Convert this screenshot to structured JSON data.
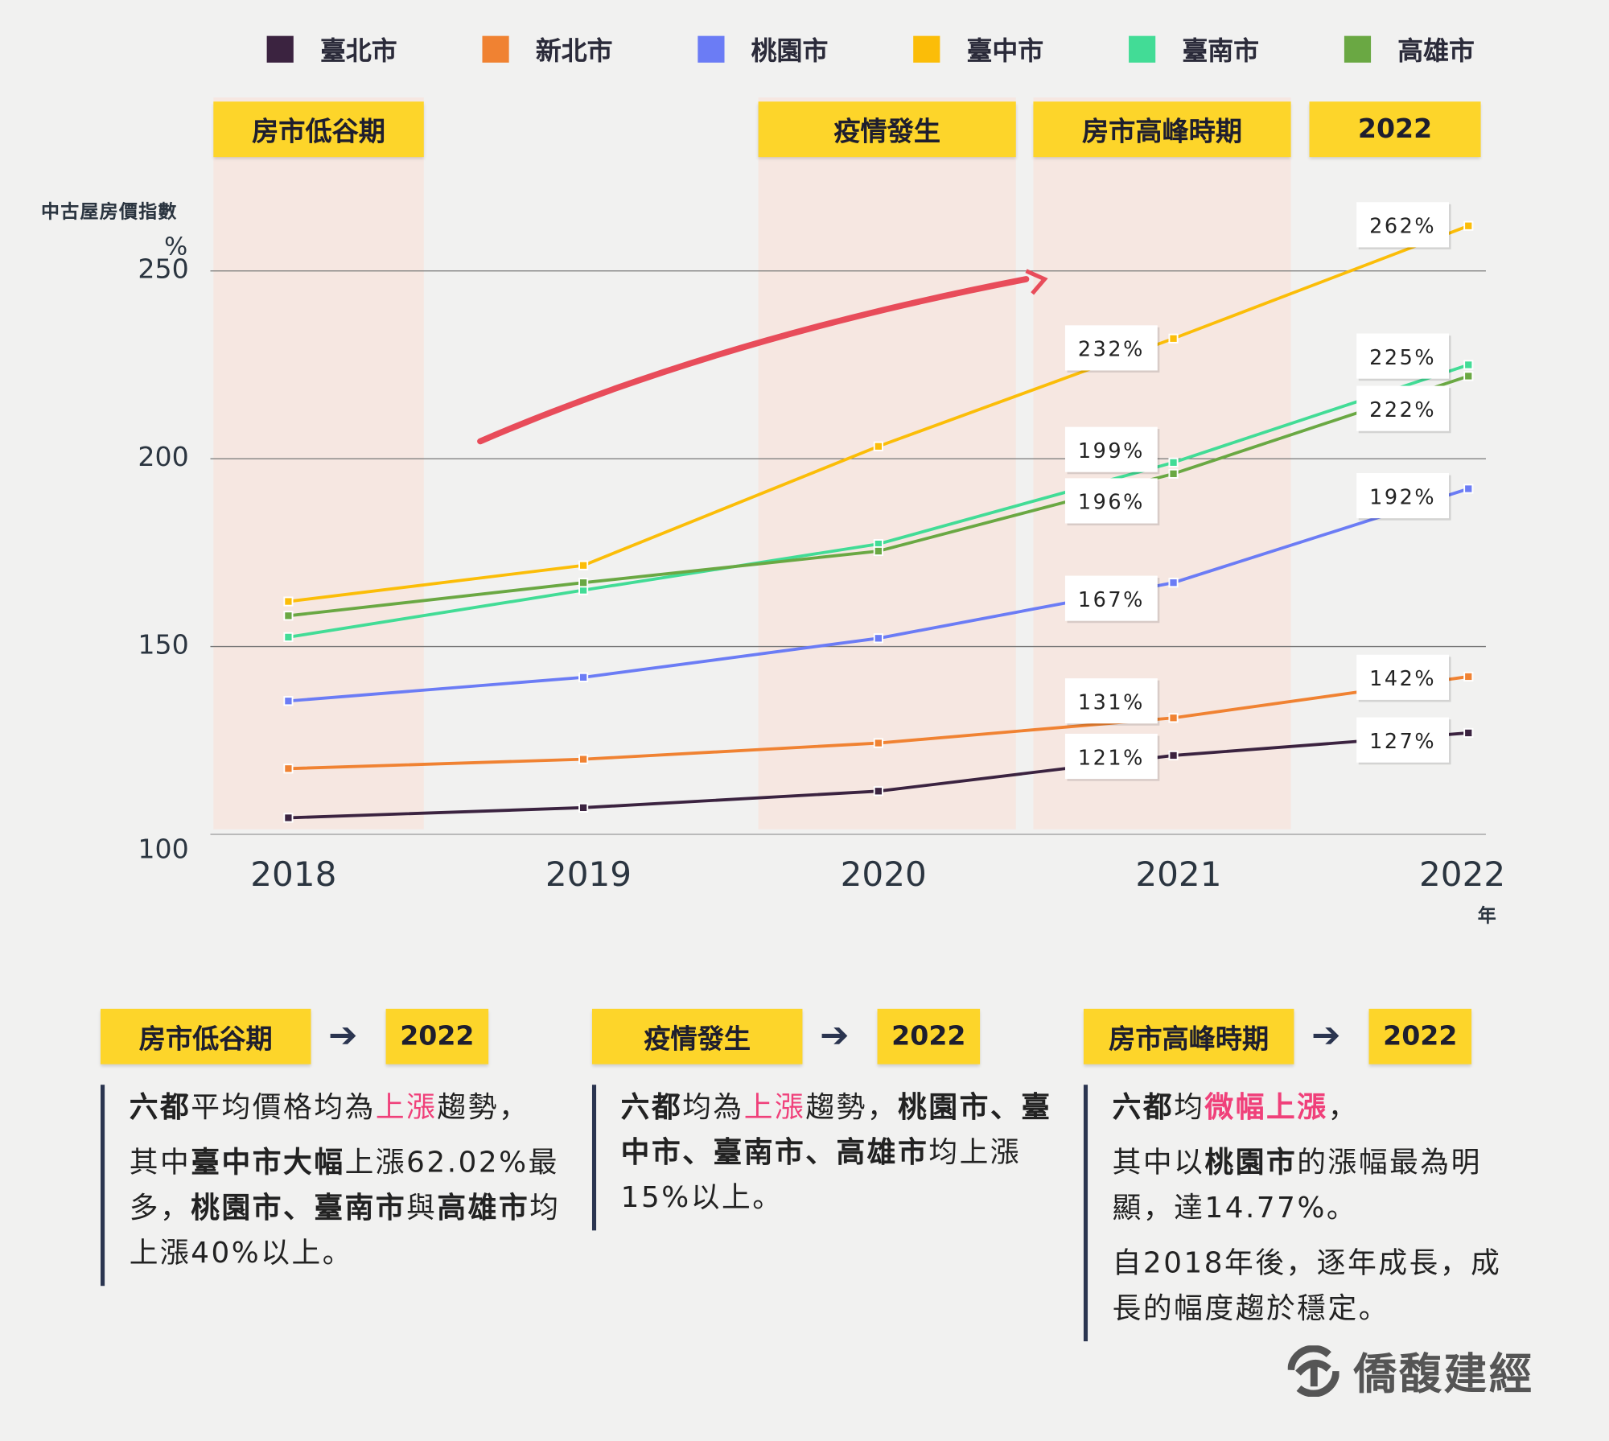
{
  "legend": [
    {
      "name": "臺北市",
      "color": "#3b2340"
    },
    {
      "name": "新北市",
      "color": "#f08232"
    },
    {
      "name": "桃園市",
      "color": "#6b7cf5"
    },
    {
      "name": "臺中市",
      "color": "#fbbd08"
    },
    {
      "name": "臺南市",
      "color": "#42dc96"
    },
    {
      "name": "高雄市",
      "color": "#6aa843"
    }
  ],
  "periods": [
    "房市低谷期",
    "疫情發生",
    "房市高峰時期",
    "2022"
  ],
  "chart_data": {
    "type": "line",
    "ylabel": "中古屋房價指數",
    "yunit": "%",
    "xunit": "年",
    "x": [
      "2018",
      "2019",
      "2020",
      "2021",
      "2022"
    ],
    "yticks": [
      "100",
      "150",
      "200",
      "250"
    ],
    "ylim": [
      100,
      250
    ],
    "grid": "horizontal",
    "legend_placement": "top",
    "series": [
      {
        "name": "臺北市",
        "color": "#3b2340",
        "values": [
          104.4,
          107.1,
          111.5,
          121,
          127
        ],
        "labels": [
          "121%",
          "127%"
        ]
      },
      {
        "name": "新北市",
        "color": "#f08232",
        "values": [
          117.5,
          120,
          124.3,
          131,
          142
        ],
        "labels": [
          "131%",
          "142%"
        ]
      },
      {
        "name": "桃園市",
        "color": "#6b7cf5",
        "values": [
          135.5,
          141.8,
          152.2,
          167,
          192
        ],
        "labels": [
          "167%",
          "192%"
        ]
      },
      {
        "name": "臺中市",
        "color": "#fbbd08",
        "values": [
          162,
          171.6,
          203.3,
          232,
          262
        ],
        "labels": [
          "232%",
          "262%"
        ]
      },
      {
        "name": "臺南市",
        "color": "#42dc96",
        "values": [
          152.5,
          165,
          177.3,
          199,
          225
        ],
        "labels": [
          "199%",
          "225%"
        ]
      },
      {
        "name": "高雄市",
        "color": "#6aa843",
        "values": [
          158.2,
          167,
          175.4,
          196,
          222
        ],
        "labels": [
          "196%",
          "222%"
        ]
      }
    ],
    "arrow_color": "#e84c5a"
  },
  "sections": [
    {
      "from": "房市低谷期",
      "to": "2022",
      "paras": [
        [
          {
            "t": "六都",
            "s": "b"
          },
          {
            "t": "平均價格均為"
          },
          {
            "t": "上漲",
            "s": "pk"
          },
          {
            "t": "趨勢，"
          }
        ],
        [
          {
            "t": "其中"
          },
          {
            "t": "臺中市大幅",
            "s": "b"
          },
          {
            "t": "上漲62.02%最多，"
          },
          {
            "t": "桃園市、臺南市",
            "s": "b"
          },
          {
            "t": "與"
          },
          {
            "t": "高雄市",
            "s": "b"
          },
          {
            "t": "均上漲40%以上。"
          }
        ]
      ]
    },
    {
      "from": "疫情發生",
      "to": "2022",
      "paras": [
        [
          {
            "t": "六都",
            "s": "b"
          },
          {
            "t": "均為"
          },
          {
            "t": "上漲",
            "s": "pk"
          },
          {
            "t": "趨勢，"
          },
          {
            "t": "桃園市、臺中市、臺南市、高雄市",
            "s": "b"
          },
          {
            "t": "均上漲15%以上。"
          }
        ]
      ]
    },
    {
      "from": "房市高峰時期",
      "to": "2022",
      "paras": [
        [
          {
            "t": "六都",
            "s": "b"
          },
          {
            "t": "均"
          },
          {
            "t": "微幅上漲",
            "s": "pk b"
          },
          {
            "t": "，"
          }
        ],
        [
          {
            "t": "其中以"
          },
          {
            "t": "桃園市",
            "s": "b"
          },
          {
            "t": "的漲幅最為明顯，達14.77%。"
          }
        ],
        [
          {
            "t": "自2018年後，逐年成長，成長的幅度趨於穩定。"
          }
        ]
      ]
    }
  ],
  "arrow_symbol": "➔",
  "logo": {
    "text": "僑馥建經",
    "color": "#555555"
  }
}
